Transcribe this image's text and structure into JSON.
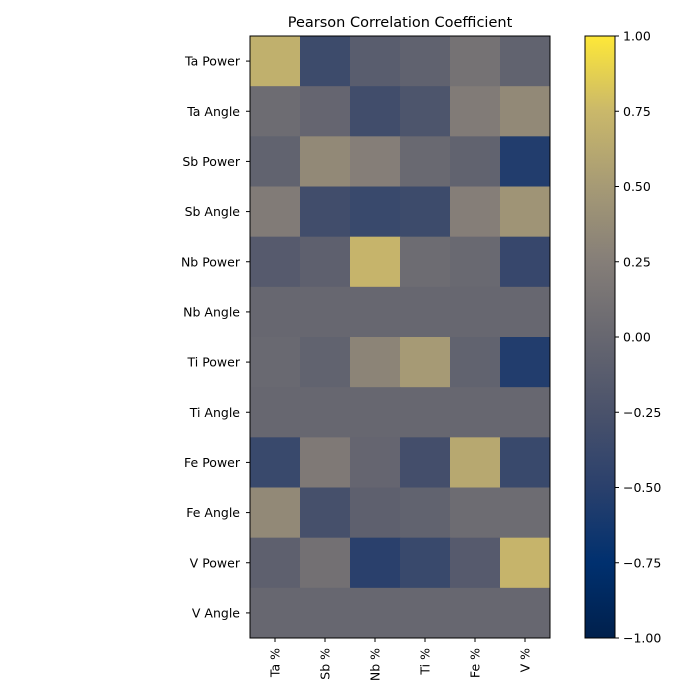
{
  "chart_data": {
    "type": "heatmap",
    "title": "Pearson Correlation Coefficient",
    "rows": [
      "Ta Power",
      "Ta Angle",
      "Sb Power",
      "Sb Angle",
      "Nb Power",
      "Nb Angle",
      "Ti Power",
      "Ti Angle",
      "Fe Power",
      "Fe Angle",
      "V Power",
      "V Angle"
    ],
    "columns": [
      "Ta %",
      "Sb %",
      "Nb %",
      "Ti %",
      "Fe %",
      "V %"
    ],
    "values": [
      [
        0.68,
        -0.35,
        -0.12,
        -0.06,
        0.12,
        -0.05
      ],
      [
        0.05,
        -0.02,
        -0.32,
        -0.22,
        0.22,
        0.35
      ],
      [
        -0.05,
        0.35,
        0.25,
        0.02,
        -0.05,
        -0.55
      ],
      [
        0.22,
        -0.32,
        -0.38,
        -0.35,
        0.25,
        0.45
      ],
      [
        -0.15,
        -0.08,
        0.72,
        0.05,
        0.02,
        -0.4
      ],
      [
        0.0,
        0.0,
        0.0,
        0.0,
        0.0,
        0.0
      ],
      [
        0.02,
        -0.05,
        0.3,
        0.5,
        -0.05,
        -0.55
      ],
      [
        0.0,
        0.0,
        0.0,
        0.0,
        0.0,
        0.0
      ],
      [
        -0.38,
        0.2,
        -0.02,
        -0.3,
        0.62,
        -0.38
      ],
      [
        0.35,
        -0.28,
        -0.08,
        -0.05,
        0.05,
        0.05
      ],
      [
        -0.08,
        0.1,
        -0.5,
        -0.38,
        -0.15,
        0.72
      ],
      [
        0.0,
        0.0,
        0.0,
        0.0,
        0.0,
        0.0
      ]
    ],
    "vmin": -1,
    "vmax": 1,
    "colormap": "cividis",
    "colorbar": {
      "ticks": [
        1.0,
        0.75,
        0.5,
        0.25,
        0.0,
        -0.25,
        -0.5,
        -0.75,
        -1.0
      ],
      "tick_labels": [
        "1.00",
        "0.75",
        "0.50",
        "0.25",
        "0.00",
        "−0.25",
        "−0.50",
        "−0.75",
        "−1.00"
      ]
    },
    "xlabel": "",
    "ylabel": "",
    "grid": false
  }
}
